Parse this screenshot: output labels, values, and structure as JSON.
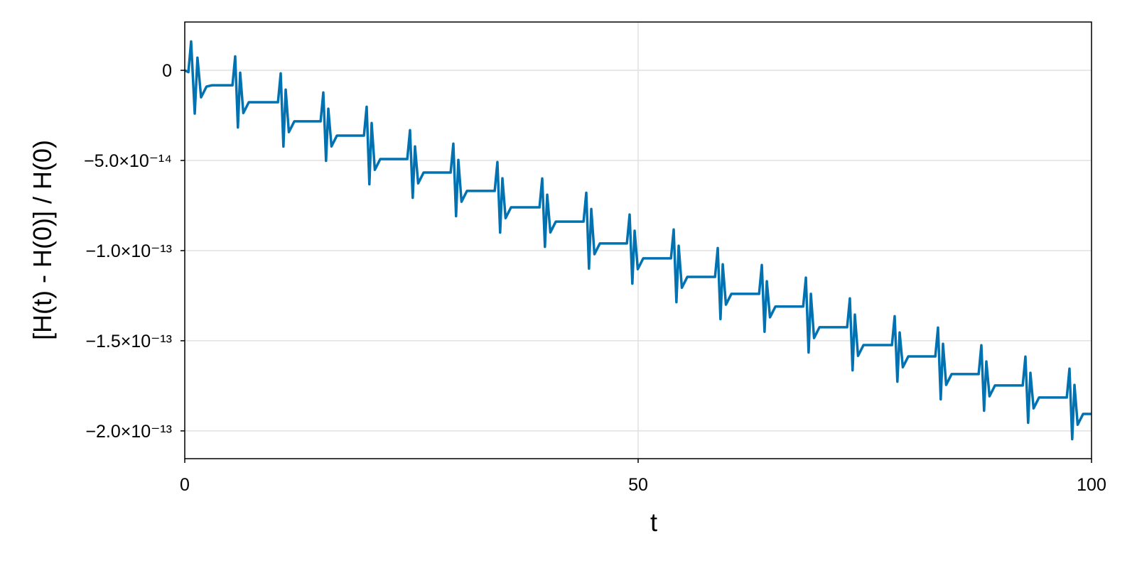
{
  "chart_data": {
    "type": "line",
    "xlabel": "t",
    "ylabel": "[H(t) - H(0)] / H(0)",
    "color": "#0072b2",
    "grid": true,
    "xlim": [
      0,
      100
    ],
    "xticks": [
      0,
      50,
      100
    ],
    "ylim": [
      2.68e-14,
      -2.154e-13
    ],
    "yticks": [
      0,
      {
        "value": -5e-14,
        "label": "−5.0×10⁻¹⁴"
      },
      {
        "value": -1e-13,
        "label": "−1.0×10⁻¹³"
      },
      {
        "value": -1.5e-13,
        "label": "−1.5×10⁻¹³"
      },
      {
        "value": -2e-13,
        "label": "−2.0×10⁻¹³"
      }
    ],
    "x": [
      0,
      0.4,
      0.7,
      1.1,
      1.4,
      1.8,
      2.4,
      3,
      5.26,
      5.56,
      5.86,
      6.11,
      6.46,
      7.06,
      10.28,
      10.58,
      10.88,
      11.13,
      11.48,
      12.08,
      14.98,
      15.28,
      15.58,
      15.83,
      16.18,
      16.78,
      19.76,
      20.06,
      20.36,
      20.61,
      20.96,
      21.56,
      24.54,
      24.84,
      25.14,
      25.39,
      25.74,
      26.34,
      29.32,
      29.62,
      29.92,
      30.17,
      30.52,
      31.12,
      34.18,
      34.48,
      34.78,
      35.03,
      35.38,
      35.98,
      39.12,
      39.42,
      39.72,
      39.97,
      40.32,
      40.92,
      43.98,
      44.28,
      44.58,
      44.83,
      45.18,
      45.78,
      48.76,
      49.06,
      49.36,
      49.61,
      49.96,
      50.56,
      53.62,
      53.92,
      54.22,
      54.47,
      54.82,
      55.42,
      58.48,
      58.78,
      59.08,
      59.33,
      59.68,
      60.28,
      63.34,
      63.64,
      63.94,
      64.19,
      64.54,
      65.14,
      68.2,
      68.5,
      68.8,
      69.05,
      69.4,
      70,
      73.05,
      73.35,
      73.65,
      73.9,
      74.25,
      74.85,
      77.99,
      78.29,
      78.59,
      78.84,
      79.19,
      79.79,
      82.77,
      83.07,
      83.37,
      83.62,
      83.97,
      84.57,
      87.55,
      87.85,
      88.15,
      88.4,
      88.75,
      89.35,
      92.41,
      92.71,
      93.01,
      93.26,
      93.61,
      94.21,
      97.27,
      97.57,
      97.87,
      98.12,
      98.47,
      99.07,
      100
    ],
    "values": [
      0,
      -1e-15,
      1.6e-14,
      -2.4e-14,
      7e-15,
      -1.5e-14,
      -9e-15,
      -8.3e-15,
      -8.3e-15,
      7.7e-15,
      -3.17e-14,
      -1.3e-15,
      -2.37e-14,
      -1.77e-14,
      -1.77e-14,
      -1.7e-15,
      -4.23e-14,
      -1.07e-14,
      -3.43e-14,
      -2.83e-14,
      -2.83e-14,
      -1.23e-14,
      -5.02e-14,
      -2.13e-14,
      -4.22e-14,
      -3.62e-14,
      -3.62e-14,
      -2.02e-14,
      -6.32e-14,
      -2.92e-14,
      -5.52e-14,
      -4.92e-14,
      -4.92e-14,
      -3.32e-14,
      -7.07e-14,
      -4.22e-14,
      -6.27e-14,
      -5.67e-14,
      -5.67e-14,
      -4.07e-14,
      -8.09e-14,
      -4.97e-14,
      -7.29e-14,
      -6.69e-14,
      -6.69e-14,
      -5.09e-14,
      -9e-14,
      -5.99e-14,
      -8.2e-14,
      -7.6e-14,
      -7.6e-14,
      -6e-14,
      -9.79e-14,
      -6.9e-14,
      -8.99e-14,
      -8.39e-14,
      -8.39e-14,
      -6.79e-14,
      -1.1e-13,
      -7.69e-14,
      -1.02e-13,
      -9.6e-14,
      -9.6e-14,
      -8e-14,
      -1.183e-13,
      -8.9e-14,
      -1.103e-13,
      -1.043e-13,
      -1.043e-13,
      -8.83e-14,
      -1.286e-13,
      -9.73e-14,
      -1.206e-13,
      -1.146e-13,
      -1.146e-13,
      -9.86e-14,
      -1.38e-13,
      -1.076e-13,
      -1.3e-13,
      -1.24e-13,
      -1.24e-13,
      -1.08e-13,
      -1.45e-13,
      -1.17e-13,
      -1.37e-13,
      -1.31e-13,
      -1.31e-13,
      -1.15e-13,
      -1.565e-13,
      -1.24e-13,
      -1.485e-13,
      -1.425e-13,
      -1.425e-13,
      -1.265e-13,
      -1.664e-13,
      -1.355e-13,
      -1.584e-13,
      -1.524e-13,
      -1.524e-13,
      -1.364e-13,
      -1.727e-13,
      -1.454e-13,
      -1.647e-13,
      -1.587e-13,
      -1.587e-13,
      -1.427e-13,
      -1.825e-13,
      -1.517e-13,
      -1.745e-13,
      -1.685e-13,
      -1.685e-13,
      -1.525e-13,
      -1.888e-13,
      -1.615e-13,
      -1.808e-13,
      -1.748e-13,
      -1.748e-13,
      -1.588e-13,
      -1.955e-13,
      -1.678e-13,
      -1.875e-13,
      -1.815e-13,
      -1.815e-13,
      -1.655e-13,
      -2.046e-13,
      -1.745e-13,
      -1.966e-13,
      -1.906e-13,
      -1.906e-13
    ]
  }
}
